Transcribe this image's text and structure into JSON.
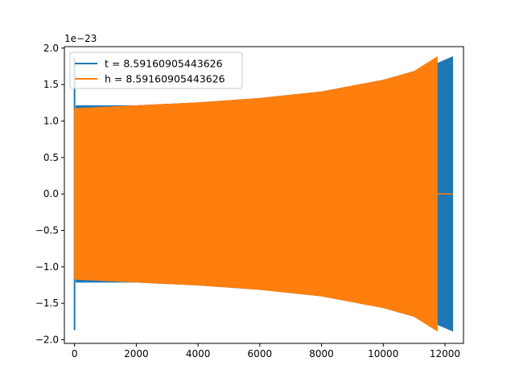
{
  "chart_data": {
    "type": "line",
    "title": "",
    "xlabel": "",
    "ylabel": "",
    "y_offset_label": "1e−23",
    "xlim": [
      -330,
      12600
    ],
    "ylim": [
      -2.05,
      2.02
    ],
    "x_ticks": [
      0,
      2000,
      4000,
      6000,
      8000,
      10000,
      12000
    ],
    "x_tick_labels": [
      "0",
      "2000",
      "4000",
      "6000",
      "8000",
      "10000",
      "12000"
    ],
    "y_ticks": [
      -2.0,
      -1.5,
      -1.0,
      -0.5,
      0.0,
      0.5,
      1.0,
      1.5,
      2.0
    ],
    "y_tick_labels": [
      "−2.0",
      "−1.5",
      "−1.0",
      "−0.5",
      "0.0",
      "0.5",
      "1.0",
      "1.5",
      "2.0"
    ],
    "grid": false,
    "legend_position": "top-left",
    "series": [
      {
        "name": "t = 8.59160905443626",
        "color": "#1f77b4",
        "envelope_x": [
          0,
          2000,
          4000,
          6000,
          8000,
          10000,
          11000,
          11750,
          12250
        ],
        "envelope_amplitude": [
          1.87,
          1.21,
          1.25,
          1.31,
          1.4,
          1.56,
          1.68,
          1.79,
          1.88
        ],
        "spike_at_x": 0,
        "spike_amplitude": 1.87,
        "end_x": 12250
      },
      {
        "name": "h = 8.59160905443626",
        "color": "#ff7f0e",
        "envelope_x": [
          0,
          2000,
          4000,
          6000,
          8000,
          10000,
          11000,
          11750
        ],
        "envelope_amplitude": [
          1.17,
          1.21,
          1.25,
          1.31,
          1.4,
          1.56,
          1.68,
          1.88
        ],
        "flat_after_x": 11750,
        "flat_value": 0.0,
        "end_x": 12250
      }
    ]
  }
}
